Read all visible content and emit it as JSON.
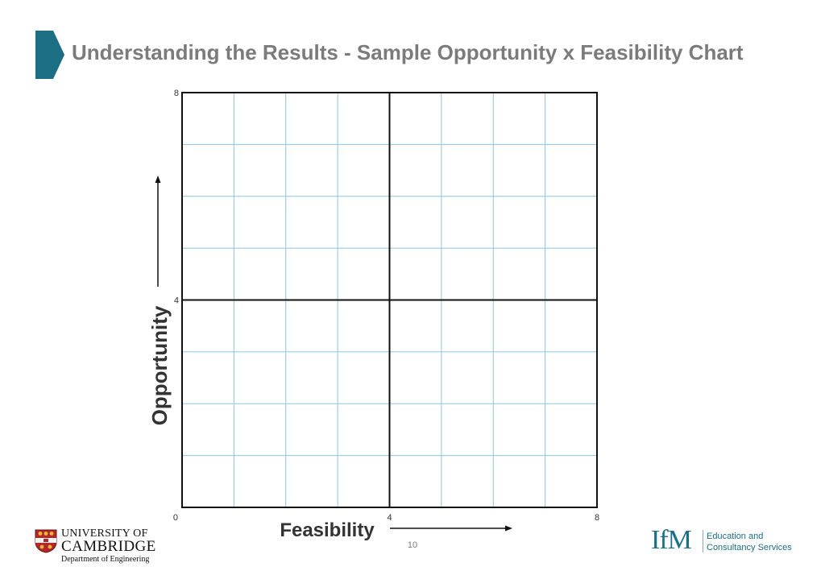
{
  "slide": {
    "title": "Understanding the Results - Sample Opportunity x Feasibility Chart",
    "page_number": "10",
    "accent_color": "#1c6f84"
  },
  "chart_data": {
    "type": "scatter",
    "xlabel": "Feasibility",
    "ylabel": "Opportunity",
    "xlim": [
      0,
      8
    ],
    "ylim": [
      0,
      8
    ],
    "x_ticks": [
      {
        "value": 0,
        "label": "0"
      },
      {
        "value": 4,
        "label": "4"
      },
      {
        "value": 8,
        "label": "8"
      }
    ],
    "y_ticks": [
      {
        "value": 4,
        "label": "4"
      },
      {
        "value": 8,
        "label": "8"
      }
    ],
    "grid": true,
    "grid_step": 1,
    "quadrant_dividers": {
      "x": 4,
      "y": 4
    },
    "grid_color": "#8cc4df",
    "series": []
  },
  "logos": {
    "cambridge": {
      "line1": "UNIVERSITY OF",
      "line2": "CAMBRIDGE",
      "line3": "Department of Engineering"
    },
    "ifm": {
      "mark": "IfM",
      "line1": "Education and",
      "line2": "Consultancy Services"
    }
  }
}
